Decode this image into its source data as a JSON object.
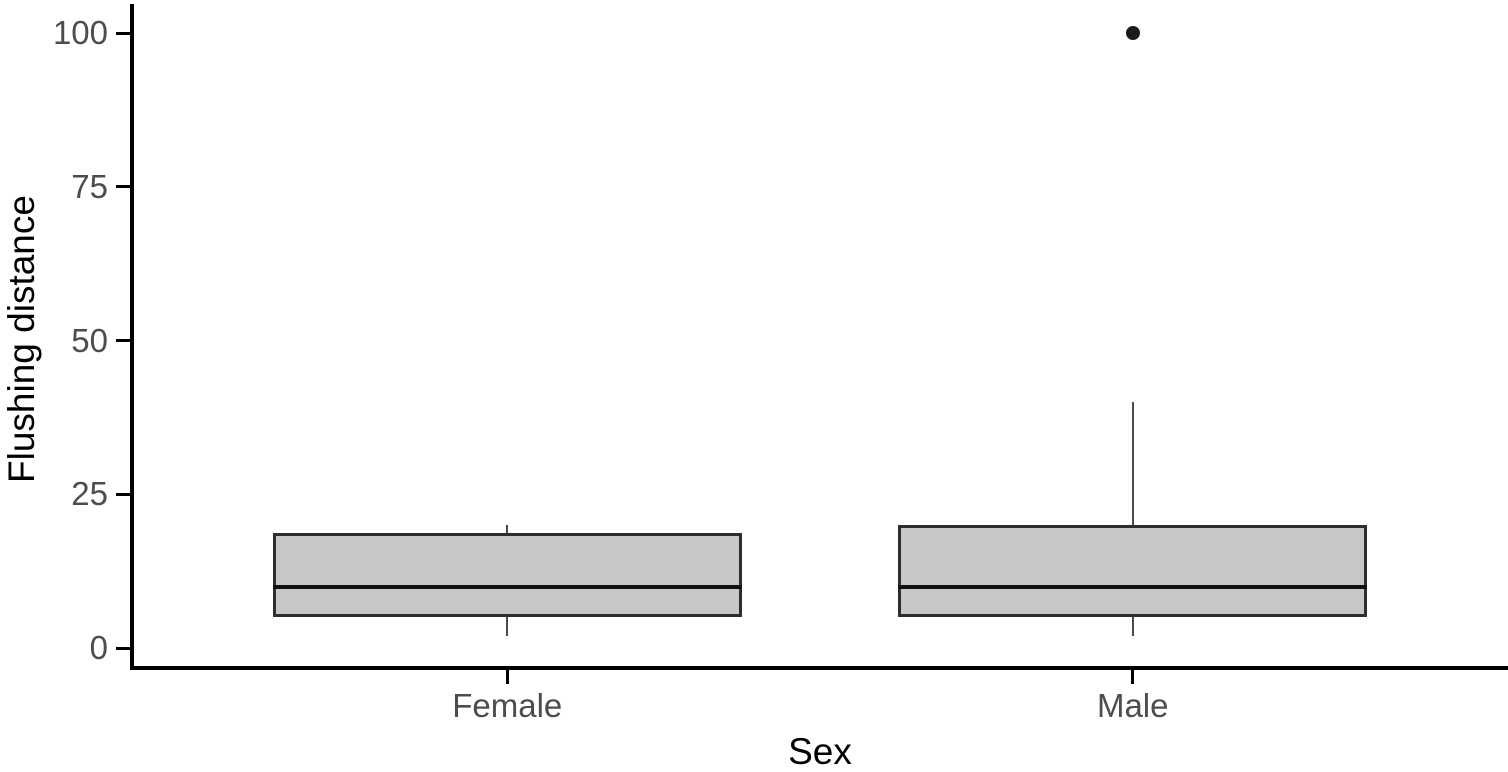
{
  "chart_data": {
    "type": "boxplot",
    "title": "",
    "xlabel": "Sex",
    "ylabel": "Flushing distance",
    "ylim": [
      0,
      100
    ],
    "yticks": [
      0,
      25,
      50,
      75,
      100
    ],
    "categories": [
      "Female",
      "Male"
    ],
    "groups": [
      {
        "label": "Female",
        "whisker_low": 2,
        "q1": 5,
        "median": 10,
        "q3": 18.75,
        "whisker_high": 20,
        "outliers": []
      },
      {
        "label": "Male",
        "whisker_low": 2,
        "q1": 5,
        "median": 10,
        "q3": 20,
        "whisker_high": 40,
        "outliers": [
          100
        ]
      }
    ],
    "legend": "none",
    "grid": "off",
    "style": {
      "box_fill": "#c7c7c7",
      "box_border": "#2e2e2e",
      "median_color": "#111111",
      "whisker_color": "#4a4a4a",
      "outlier_color": "#1a1a1a",
      "axis_color": "#000000",
      "tick_label_color": "#4d4d4d",
      "axis_title_color": "#000000"
    }
  }
}
